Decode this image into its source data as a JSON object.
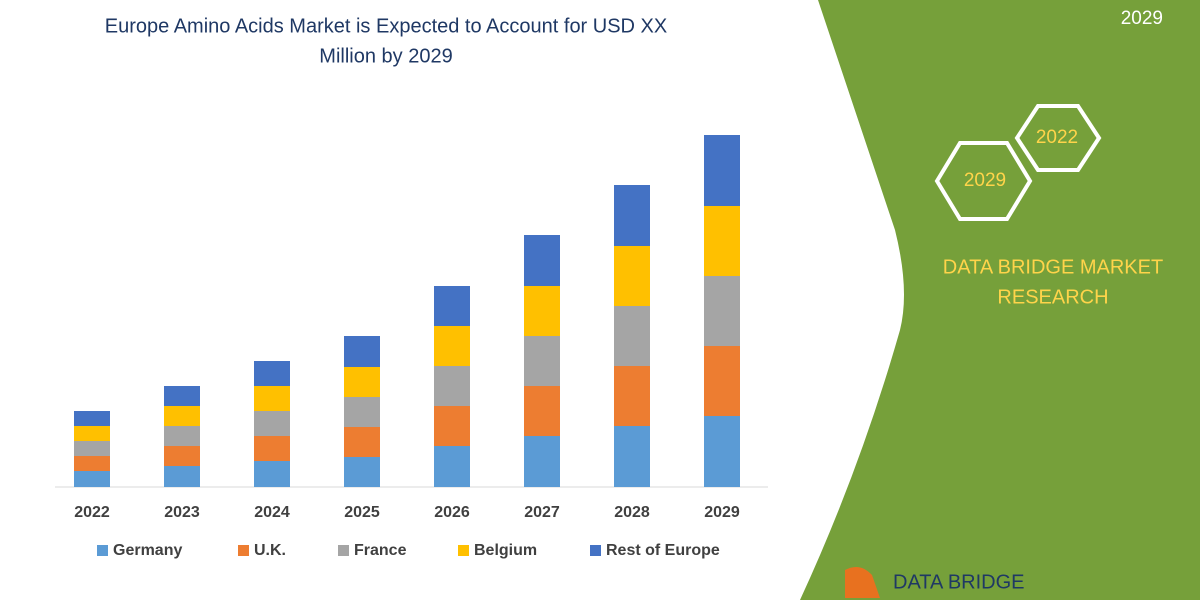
{
  "chart_data": {
    "type": "stacked-bar",
    "title": [
      "Europe Amino Acids Market is Expected to Account for USD XX",
      "Million by 2029"
    ],
    "categories": [
      "2022",
      "2023",
      "2024",
      "2025",
      "2026",
      "2027",
      "2028",
      "2029"
    ],
    "series": [
      {
        "name": "Germany",
        "color": "#5b9bd5",
        "values": [
          16,
          21,
          26,
          30,
          41,
          51,
          61,
          71
        ]
      },
      {
        "name": "U.K.",
        "color": "#ed7d31",
        "values": [
          15,
          20,
          25,
          30,
          40,
          50,
          60,
          70
        ]
      },
      {
        "name": "France",
        "color": "#a5a5a5",
        "values": [
          15,
          20,
          25,
          30,
          40,
          50,
          60,
          70
        ]
      },
      {
        "name": "Belgium",
        "color": "#ffc000",
        "values": [
          15,
          20,
          25,
          30,
          40,
          50,
          60,
          70
        ]
      },
      {
        "name": "Rest of Europe",
        "color": "#4472c4",
        "values": [
          15,
          20,
          25,
          31,
          40,
          51,
          61,
          71
        ]
      }
    ],
    "ylim": [
      0,
      360
    ]
  },
  "panel": {
    "corner_text": "2029",
    "hexagons": [
      "2022",
      "2029"
    ],
    "brand": [
      "DATA BRIDGE MARKET",
      "RESEARCH"
    ],
    "logo": "DATA BRIDGE"
  }
}
